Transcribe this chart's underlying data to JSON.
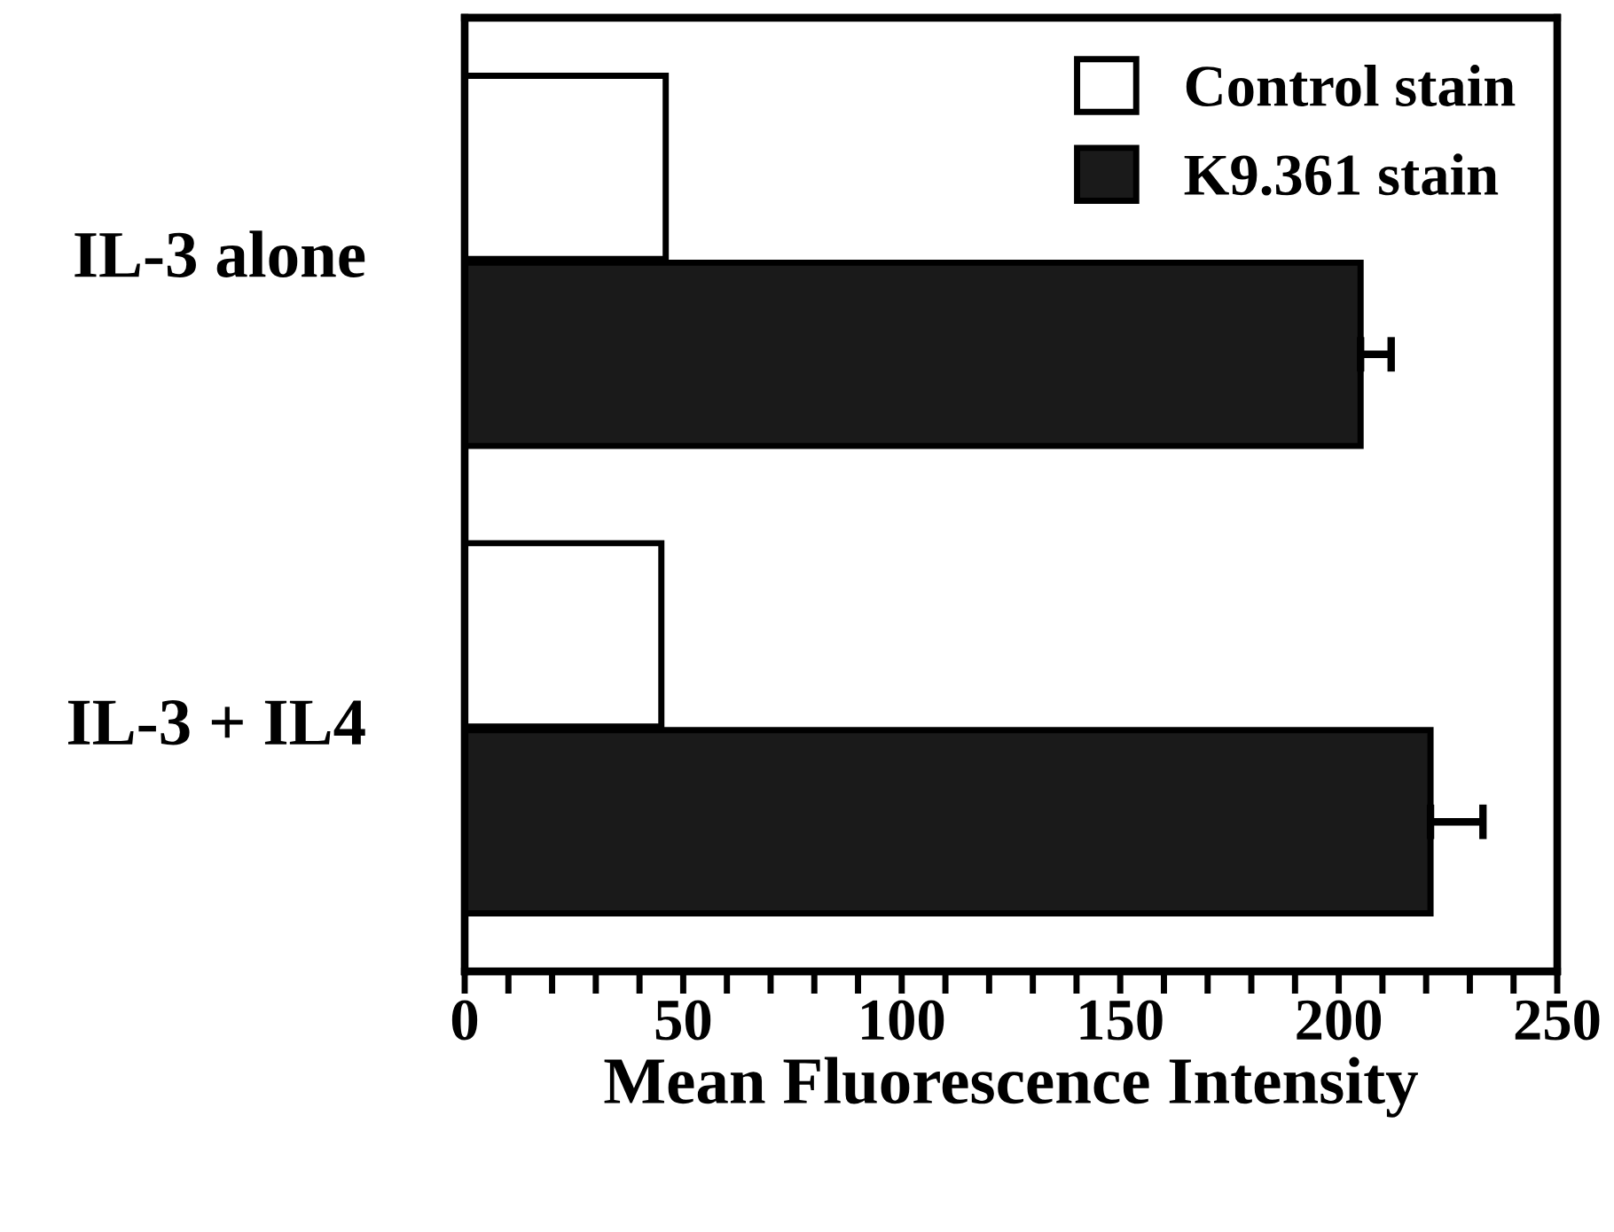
{
  "chart_data": {
    "type": "bar",
    "orientation": "horizontal",
    "xlabel": "Mean Fluorescence Intensity",
    "categories": [
      "IL-3 alone",
      "IL-3 + IL4"
    ],
    "series": [
      {
        "name": "Control stain",
        "color": "#ffffff",
        "values": [
          46,
          45
        ]
      },
      {
        "name": "K9.361 stain",
        "color": "#1a1a1a",
        "values": [
          205,
          221
        ],
        "errors": [
          [
            205,
            212
          ],
          [
            221,
            233
          ]
        ]
      }
    ],
    "xlim": [
      0,
      250
    ],
    "xticks": [
      0,
      {
        "value": 10,
        "label": null
      },
      {
        "value": 20,
        "label": null
      },
      {
        "value": 30,
        "label": null
      },
      {
        "value": 40,
        "label": null
      },
      50,
      {
        "value": 60,
        "label": null
      },
      {
        "value": 70,
        "label": null
      },
      {
        "value": 80,
        "label": null
      },
      {
        "value": 90,
        "label": null
      },
      100,
      {
        "value": 110,
        "label": null
      },
      {
        "value": 120,
        "label": null
      },
      {
        "value": 130,
        "label": null
      },
      {
        "value": 140,
        "label": null
      },
      150,
      {
        "value": 160,
        "label": null
      },
      {
        "value": 170,
        "label": null
      },
      {
        "value": 180,
        "label": null
      },
      {
        "value": 190,
        "label": null
      },
      200,
      {
        "value": 210,
        "label": null
      },
      {
        "value": 220,
        "label": null
      },
      {
        "value": 230,
        "label": null
      },
      {
        "value": 240,
        "label": null
      },
      250
    ],
    "grid": false,
    "legend": "top right"
  }
}
